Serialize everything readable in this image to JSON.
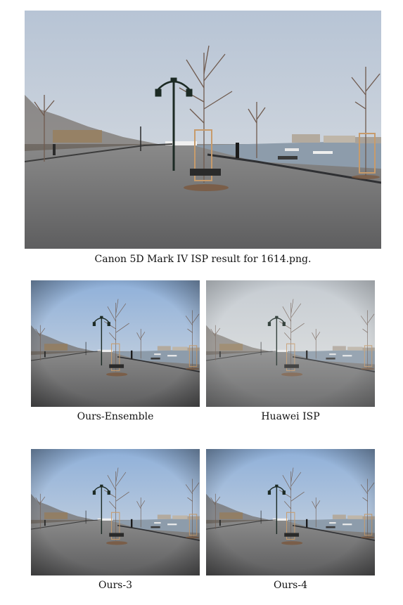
{
  "figure": {
    "main": {
      "caption": "Canon 5D Mark IV ISP result for 1614.png."
    },
    "panels": [
      {
        "caption": "Ours-Ensemble"
      },
      {
        "caption": "Huawei ISP"
      },
      {
        "caption": "Ours-3"
      },
      {
        "caption": "Ours-4"
      }
    ]
  },
  "colors": {
    "sky_top": "#b9c6d6",
    "sky_bottom": "#d8dde2",
    "ground": "#6f6f70",
    "water": "#8a9aa8",
    "tree": "#6b5448",
    "lamp": "#1d2a24"
  }
}
